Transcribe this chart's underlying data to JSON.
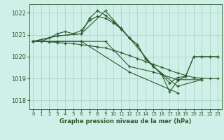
{
  "title": "Graphe pression niveau de la mer (hPa)",
  "background_color": "#cff0e8",
  "grid_color": "#b0d8cc",
  "line_color": "#2d5a2d",
  "xlim": [
    -0.5,
    23.5
  ],
  "ylim": [
    1017.6,
    1022.4
  ],
  "yticks": [
    1018,
    1019,
    1020,
    1021,
    1022
  ],
  "xticks": [
    0,
    1,
    2,
    3,
    4,
    5,
    6,
    7,
    8,
    9,
    10,
    11,
    12,
    13,
    14,
    15,
    16,
    17,
    18,
    19,
    20,
    21,
    22,
    23
  ],
  "series": [
    {
      "x": [
        0,
        1,
        2,
        3,
        4,
        5,
        6,
        7,
        8,
        9,
        10,
        11,
        12,
        13,
        14,
        15,
        16,
        17,
        18,
        19,
        20,
        21,
        22,
        23
      ],
      "y": [
        1020.7,
        1020.7,
        1020.85,
        1021.05,
        1021.15,
        1021.05,
        1021.2,
        1021.65,
        1021.85,
        1021.75,
        1021.55,
        1021.25,
        1020.85,
        1020.55,
        1019.9,
        1019.55,
        1019.2,
        1018.4,
        1018.9,
        1019.1,
        1020.0,
        1020.0,
        1020.0,
        1020.0
      ]
    },
    {
      "x": [
        0,
        1,
        2,
        3,
        4,
        5,
        6,
        7,
        8,
        9,
        10,
        11,
        12,
        13,
        14,
        15,
        16,
        17,
        18,
        19,
        20,
        21,
        22,
        23
      ],
      "y": [
        1020.7,
        1020.7,
        1020.68,
        1020.65,
        1020.62,
        1020.6,
        1020.55,
        1020.5,
        1020.45,
        1020.4,
        1020.3,
        1020.18,
        1020.05,
        1019.92,
        1019.78,
        1019.65,
        1019.52,
        1019.38,
        1019.25,
        1019.15,
        1019.05,
        1019.02,
        1019.0,
        1019.0
      ]
    },
    {
      "x": [
        0,
        3,
        6,
        7,
        8,
        9,
        10,
        11,
        12,
        13,
        14,
        15,
        16,
        17,
        18,
        19,
        20,
        21,
        22,
        23
      ],
      "y": [
        1020.7,
        1020.95,
        1021.05,
        1021.75,
        1022.1,
        1021.9,
        1021.6,
        1021.3,
        1020.85,
        1020.55,
        1019.9,
        1019.55,
        1019.2,
        1018.8,
        1019.05,
        1019.1,
        1020.0,
        1020.0,
        1020.0,
        1020.0
      ]
    },
    {
      "comment": "3-hourly sparse - 0,3,6,9,12,15,18,21",
      "x": [
        0,
        3,
        6,
        9,
        12,
        15,
        18,
        21
      ],
      "y": [
        1020.7,
        1020.95,
        1021.05,
        1022.1,
        1020.85,
        1019.55,
        1018.65,
        1018.95
      ]
    },
    {
      "x": [
        0,
        6,
        12,
        18
      ],
      "y": [
        1020.7,
        1020.7,
        1019.3,
        1018.35
      ]
    },
    {
      "x": [
        0,
        3,
        6,
        9,
        12,
        15,
        18,
        21
      ],
      "y": [
        1020.7,
        1020.7,
        1020.7,
        1020.7,
        1019.55,
        1019.3,
        1018.95,
        1018.95
      ]
    }
  ]
}
